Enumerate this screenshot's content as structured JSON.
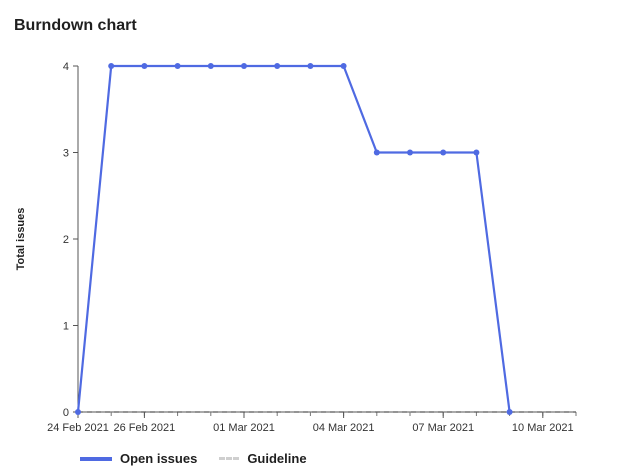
{
  "title": "Burndown chart",
  "chart_data": {
    "type": "line",
    "title": "Burndown chart",
    "ylabel": "Total issues",
    "xlabel": "",
    "ylim": [
      0,
      4
    ],
    "xlim": [
      "2021-02-24",
      "2021-03-11"
    ],
    "y_ticks": [
      "0",
      "1",
      "2",
      "3",
      "4"
    ],
    "x_ticks": [
      {
        "date": "2021-02-24",
        "label": "24 Feb 2021"
      },
      {
        "date": "2021-02-26",
        "label": "26 Feb 2021"
      },
      {
        "date": "2021-03-01",
        "label": "01 Mar 2021"
      },
      {
        "date": "2021-03-04",
        "label": "04 Mar 2021"
      },
      {
        "date": "2021-03-07",
        "label": "07 Mar 2021"
      },
      {
        "date": "2021-03-10",
        "label": "10 Mar 2021"
      }
    ],
    "series": [
      {
        "name": "Open issues",
        "color": "#4f6ae2",
        "style": "solid",
        "x": [
          "2021-02-24",
          "2021-02-25",
          "2021-02-26",
          "2021-02-27",
          "2021-02-28",
          "2021-03-01",
          "2021-03-02",
          "2021-03-03",
          "2021-03-04",
          "2021-03-05",
          "2021-03-06",
          "2021-03-07",
          "2021-03-08",
          "2021-03-09"
        ],
        "y": [
          0,
          4,
          4,
          4,
          4,
          4,
          4,
          4,
          4,
          3,
          3,
          3,
          3,
          0
        ]
      },
      {
        "name": "Guideline",
        "color": "#555555",
        "style": "dashed",
        "x": [
          "2021-02-24",
          "2021-03-11"
        ],
        "y": [
          0,
          0
        ]
      }
    ],
    "legend_position": "bottom-left",
    "grid": false
  },
  "legend": {
    "open_issues": "Open issues",
    "guideline": "Guideline"
  }
}
